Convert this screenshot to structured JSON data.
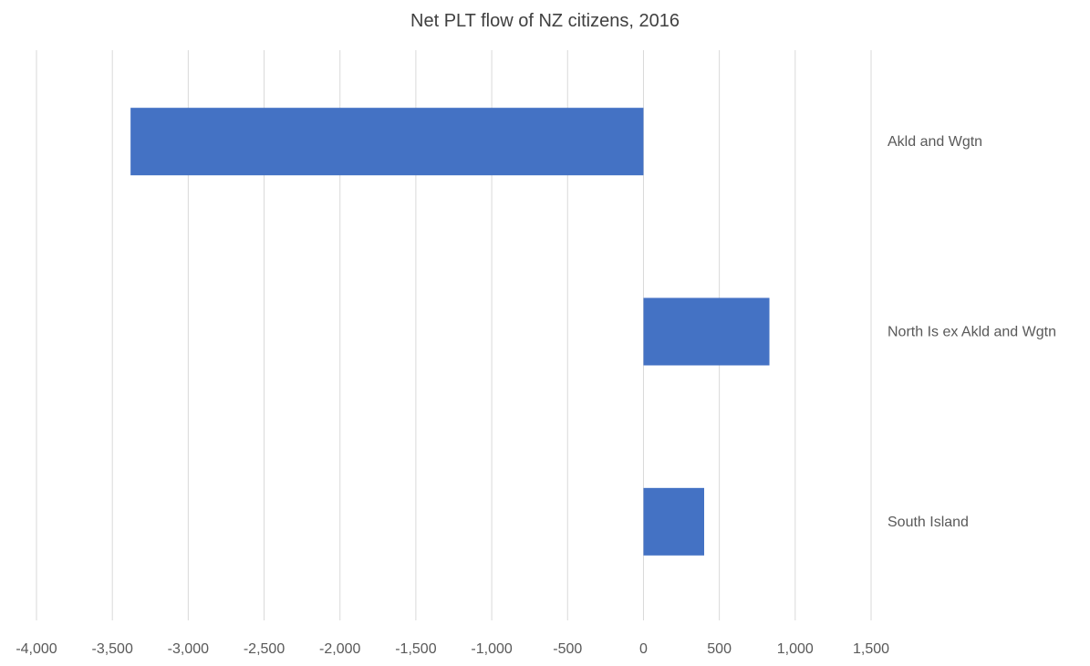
{
  "chart_data": {
    "type": "bar",
    "orientation": "horizontal",
    "title": "Net PLT flow of NZ citizens, 2016",
    "xlabel": "",
    "ylabel": "",
    "categories": [
      "Akld and Wgtn",
      "North Is ex Akld and Wgtn",
      "South Island"
    ],
    "values": [
      -3380,
      830,
      400
    ],
    "xlim": [
      -4000,
      1500
    ],
    "xticks": [
      -4000,
      -3500,
      -3000,
      -2500,
      -2000,
      -1500,
      -1000,
      -500,
      0,
      500,
      1000,
      1500
    ],
    "xtick_labels": [
      "-4,000",
      "-3,500",
      "-3,000",
      "-2,500",
      "-2,000",
      "-1,500",
      "-1,000",
      "-500",
      "0",
      "500",
      "1,000",
      "1,500"
    ],
    "grid": "vertical",
    "legend": "none",
    "bar_color": "#4472C4",
    "gridline_color": "#D9D9D9",
    "category_labels_position": "right"
  }
}
